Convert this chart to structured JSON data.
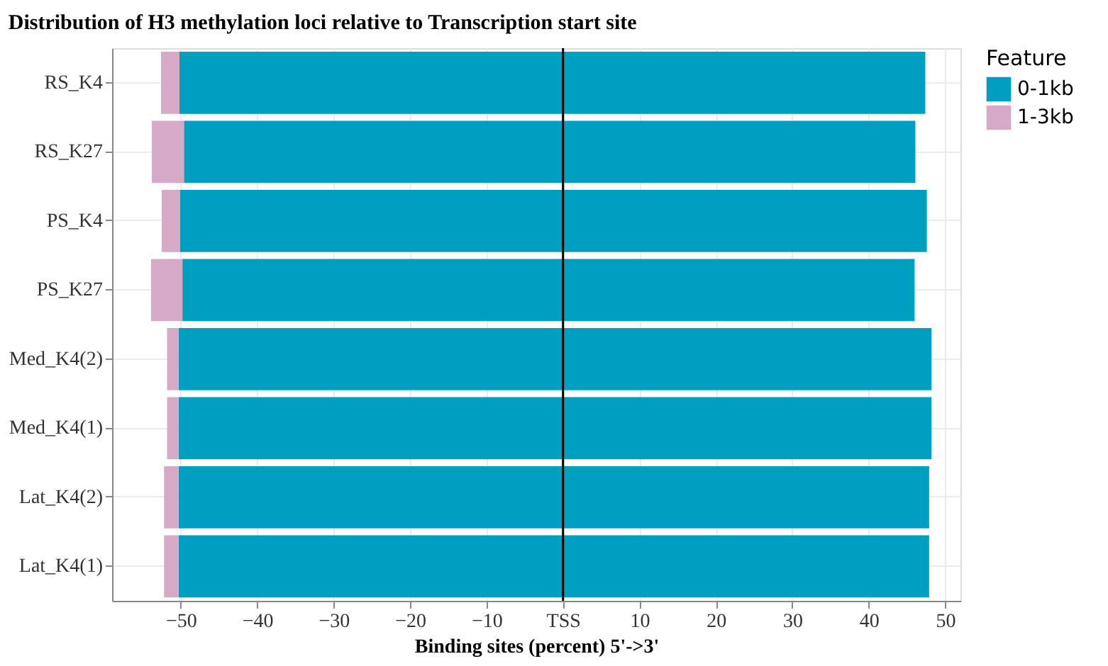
{
  "chart_data": {
    "type": "bar",
    "orientation": "horizontal",
    "stacked": true,
    "title": "Distribution of H3 methylation loci relative to Transcription start site",
    "xlabel": "Binding sites (percent) 5'->3'",
    "legend_title": "Feature",
    "categories": [
      "RS_K4",
      "RS_K27",
      "PS_K4",
      "PS_K27",
      "Med_K4(2)",
      "Med_K4(1)",
      "Lat_K4(2)",
      "Lat_K4(1)"
    ],
    "series": [
      {
        "name": "0-1kb",
        "color": "#009fc2",
        "values": [
          47.4,
          46.1,
          47.6,
          46.0,
          48.2,
          48.2,
          47.9,
          47.9
        ]
      },
      {
        "color": "#009fc2",
        "values": [
          -50.2,
          -49.6,
          -50.1,
          -49.8,
          -50.3,
          -50.3,
          -50.3,
          -50.3
        ]
      },
      {
        "name": "1-3kb",
        "color": "#d6a9c6",
        "values": [
          -2.4,
          -4.2,
          -2.4,
          -4.1,
          -1.5,
          -1.5,
          -1.9,
          -1.9
        ]
      }
    ],
    "xlim": [
      -59,
      52
    ],
    "xticks": [
      -50,
      -40,
      -30,
      -20,
      -10,
      {
        "value": 0,
        "label": "TSS"
      },
      10,
      20,
      30,
      40,
      50
    ],
    "ref_lines": [
      {
        "axis": "x",
        "value": 0,
        "color": "#000000"
      }
    ],
    "grid": true,
    "legend": "right"
  }
}
